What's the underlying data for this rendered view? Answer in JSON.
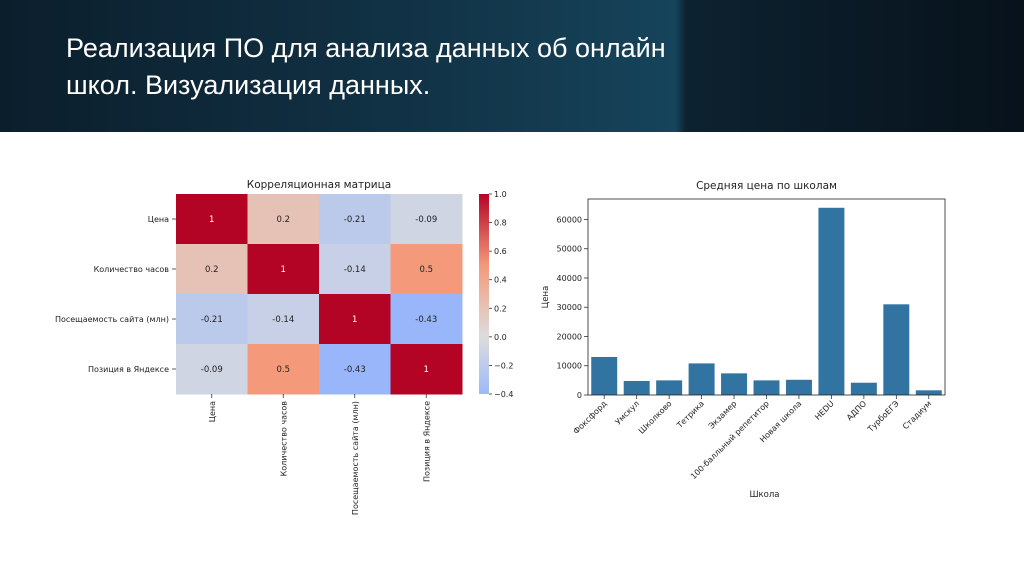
{
  "slide": {
    "title": "Реализация ПО для анализа данных об онлайн школ. Визуализация данных."
  },
  "chart_data": [
    {
      "type": "heatmap",
      "title": "Корреляционная матрица",
      "rows": [
        "Цена",
        "Количество часов",
        "Посещаемость сайта (млн)",
        "Позиция в Яндексе"
      ],
      "cols": [
        "Цена",
        "Количество часов",
        "Посещаемость сайта (млн)",
        "Позиция в Яндексе"
      ],
      "values": [
        [
          1,
          0.2,
          -0.21,
          -0.09
        ],
        [
          0.2,
          1,
          -0.14,
          0.5
        ],
        [
          -0.21,
          -0.14,
          1,
          -0.43
        ],
        [
          -0.09,
          0.5,
          -0.43,
          1
        ]
      ],
      "value_labels": [
        [
          "1",
          "0.2",
          "-0.21",
          "-0.09"
        ],
        [
          "0.2",
          "1",
          "-0.14",
          "0.5"
        ],
        [
          "-0.21",
          "-0.14",
          "1",
          "-0.43"
        ],
        [
          "-0.09",
          "0.5",
          "-0.43",
          "1"
        ]
      ],
      "colorbar": {
        "range": [
          -0.4,
          1.0
        ],
        "ticks": [
          1.0,
          0.8,
          0.6,
          0.4,
          0.2,
          0.0,
          -0.2,
          -0.4
        ],
        "tick_labels": [
          "1.0",
          "0.8",
          "0.6",
          "0.4",
          "0.2",
          "0.0",
          "−0.2",
          "−0.4"
        ]
      },
      "colormap": "coolwarm"
    },
    {
      "type": "bar",
      "title": "Средняя цена по школам",
      "xlabel": "Школа",
      "ylabel": "Цена",
      "categories": [
        "Фоксфорд",
        "Умскул",
        "Школково",
        "Тетрика",
        "Экзамер",
        "100-балльный репетитор",
        "Новая школа",
        "HEDU",
        "АДПО",
        "ТурбоЕГЭ",
        "Стадиум"
      ],
      "values": [
        13000,
        4800,
        5000,
        10800,
        7400,
        5000,
        5200,
        64000,
        4200,
        31000,
        1600
      ],
      "ylim": [
        0,
        67000
      ],
      "yticks": [
        0,
        10000,
        20000,
        30000,
        40000,
        50000,
        60000
      ],
      "bar_color": "#3274a1"
    }
  ]
}
